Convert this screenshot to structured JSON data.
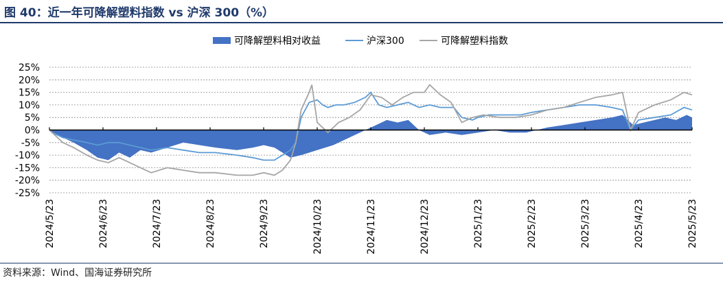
{
  "title": "图 40：近一年可降解塑料指数 vs 沪深 300（%）",
  "source": "资料来源：Wind、国海证券研究所",
  "colors": {
    "relative": "#4472c4",
    "hs300": "#5b9bd5",
    "index": "#a5a5a5",
    "title": "#1f3a6b"
  },
  "chart_data": {
    "type": "line",
    "ylim": [
      -25,
      25
    ],
    "y_ticks": [
      -25,
      -20,
      -15,
      -10,
      -5,
      0,
      5,
      10,
      15,
      20,
      25
    ],
    "y_tick_labels": [
      "-25%",
      "-20%",
      "-15%",
      "-10%",
      "-5%",
      "0%",
      "5%",
      "10%",
      "15%",
      "20%",
      "25%"
    ],
    "x_tick_labels": [
      "2024/5/23",
      "2024/6/23",
      "2024/7/23",
      "2024/8/23",
      "2024/9/23",
      "2024/10/23",
      "2024/11/23",
      "2024/12/23",
      "2025/1/23",
      "2025/2/23",
      "2025/3/23",
      "2025/4/23",
      "2025/5/23"
    ],
    "grid": true,
    "legend_position": "top-center",
    "series": [
      {
        "name": "可降解塑料相对收益",
        "kind": "area",
        "points": [
          [
            0,
            0
          ],
          [
            0.05,
            -1
          ],
          [
            0.25,
            -3
          ],
          [
            0.45,
            -5
          ],
          [
            0.7,
            -8
          ],
          [
            0.9,
            -11
          ],
          [
            1.1,
            -12
          ],
          [
            1.3,
            -9
          ],
          [
            1.5,
            -11
          ],
          [
            1.7,
            -8
          ],
          [
            1.9,
            -9
          ],
          [
            2.2,
            -7
          ],
          [
            2.5,
            -5
          ],
          [
            2.8,
            -6
          ],
          [
            3.1,
            -7
          ],
          [
            3.5,
            -8
          ],
          [
            3.8,
            -7
          ],
          [
            4.0,
            -6
          ],
          [
            4.2,
            -7
          ],
          [
            4.35,
            -9
          ],
          [
            4.5,
            -11
          ],
          [
            4.7,
            -10
          ],
          [
            5.0,
            -8
          ],
          [
            5.3,
            -6
          ],
          [
            5.6,
            -3
          ],
          [
            5.9,
            0
          ],
          [
            6.1,
            2
          ],
          [
            6.3,
            4
          ],
          [
            6.5,
            3
          ],
          [
            6.7,
            4
          ],
          [
            6.9,
            0
          ],
          [
            7.1,
            -2
          ],
          [
            7.4,
            -1
          ],
          [
            7.7,
            -2
          ],
          [
            8.0,
            -1
          ],
          [
            8.3,
            0
          ],
          [
            8.6,
            -1
          ],
          [
            8.9,
            -1
          ],
          [
            9.1,
            0
          ],
          [
            9.3,
            1
          ],
          [
            9.6,
            2
          ],
          [
            9.9,
            3
          ],
          [
            10.2,
            4
          ],
          [
            10.5,
            5
          ],
          [
            10.7,
            6
          ],
          [
            10.9,
            2
          ],
          [
            11.1,
            3
          ],
          [
            11.3,
            4
          ],
          [
            11.5,
            5
          ],
          [
            11.7,
            4
          ],
          [
            11.9,
            6
          ],
          [
            12.0,
            5
          ]
        ]
      },
      {
        "name": "沪深300",
        "kind": "line",
        "points": [
          [
            0,
            0
          ],
          [
            0.05,
            -1
          ],
          [
            0.25,
            -3
          ],
          [
            0.45,
            -4
          ],
          [
            0.7,
            -5
          ],
          [
            0.9,
            -6
          ],
          [
            1.1,
            -5
          ],
          [
            1.3,
            -5
          ],
          [
            1.5,
            -6
          ],
          [
            1.7,
            -7
          ],
          [
            1.9,
            -8
          ],
          [
            2.2,
            -7
          ],
          [
            2.5,
            -8
          ],
          [
            2.8,
            -9
          ],
          [
            3.1,
            -9
          ],
          [
            3.5,
            -10
          ],
          [
            3.8,
            -11
          ],
          [
            4.0,
            -12
          ],
          [
            4.2,
            -12
          ],
          [
            4.35,
            -10
          ],
          [
            4.5,
            -8
          ],
          [
            4.6,
            -5
          ],
          [
            4.7,
            5
          ],
          [
            4.85,
            11
          ],
          [
            5.0,
            12
          ],
          [
            5.1,
            10
          ],
          [
            5.2,
            9
          ],
          [
            5.35,
            10
          ],
          [
            5.5,
            10
          ],
          [
            5.7,
            11
          ],
          [
            5.9,
            13
          ],
          [
            6.0,
            15
          ],
          [
            6.15,
            10
          ],
          [
            6.3,
            9
          ],
          [
            6.5,
            10
          ],
          [
            6.7,
            11
          ],
          [
            6.9,
            9
          ],
          [
            7.1,
            10
          ],
          [
            7.3,
            9
          ],
          [
            7.55,
            9
          ],
          [
            7.7,
            5
          ],
          [
            7.9,
            4
          ],
          [
            8.0,
            5
          ],
          [
            8.2,
            6
          ],
          [
            8.5,
            6
          ],
          [
            8.8,
            6
          ],
          [
            9.0,
            7
          ],
          [
            9.3,
            8
          ],
          [
            9.6,
            9
          ],
          [
            9.9,
            10
          ],
          [
            10.2,
            10
          ],
          [
            10.5,
            9
          ],
          [
            10.7,
            8
          ],
          [
            10.85,
            0
          ],
          [
            11.0,
            4
          ],
          [
            11.3,
            5
          ],
          [
            11.6,
            6
          ],
          [
            11.85,
            9
          ],
          [
            12.0,
            8
          ]
        ]
      },
      {
        "name": "可降解塑料指数",
        "kind": "line",
        "points": [
          [
            0,
            0
          ],
          [
            0.05,
            -1
          ],
          [
            0.25,
            -5
          ],
          [
            0.45,
            -7
          ],
          [
            0.7,
            -10
          ],
          [
            0.9,
            -12
          ],
          [
            1.1,
            -13
          ],
          [
            1.3,
            -11
          ],
          [
            1.5,
            -13
          ],
          [
            1.7,
            -15
          ],
          [
            1.9,
            -17
          ],
          [
            2.2,
            -15
          ],
          [
            2.5,
            -16
          ],
          [
            2.8,
            -17
          ],
          [
            3.1,
            -17
          ],
          [
            3.5,
            -18
          ],
          [
            3.8,
            -18
          ],
          [
            4.0,
            -17
          ],
          [
            4.2,
            -18
          ],
          [
            4.35,
            -16
          ],
          [
            4.5,
            -12
          ],
          [
            4.6,
            -5
          ],
          [
            4.7,
            8
          ],
          [
            4.85,
            15
          ],
          [
            4.9,
            18
          ],
          [
            5.0,
            3
          ],
          [
            5.2,
            -1
          ],
          [
            5.4,
            3
          ],
          [
            5.6,
            5
          ],
          [
            5.8,
            8
          ],
          [
            6.0,
            14
          ],
          [
            6.2,
            13
          ],
          [
            6.4,
            10
          ],
          [
            6.6,
            13
          ],
          [
            6.8,
            15
          ],
          [
            7.0,
            15
          ],
          [
            7.1,
            18
          ],
          [
            7.3,
            14
          ],
          [
            7.5,
            11
          ],
          [
            7.7,
            3
          ],
          [
            7.9,
            5
          ],
          [
            8.1,
            6
          ],
          [
            8.4,
            5
          ],
          [
            8.7,
            5
          ],
          [
            9.0,
            6
          ],
          [
            9.3,
            8
          ],
          [
            9.6,
            9
          ],
          [
            9.9,
            11
          ],
          [
            10.2,
            13
          ],
          [
            10.5,
            14
          ],
          [
            10.7,
            15
          ],
          [
            10.85,
            0
          ],
          [
            11.0,
            7
          ],
          [
            11.3,
            10
          ],
          [
            11.6,
            12
          ],
          [
            11.85,
            15
          ],
          [
            12.0,
            14
          ]
        ]
      }
    ]
  }
}
